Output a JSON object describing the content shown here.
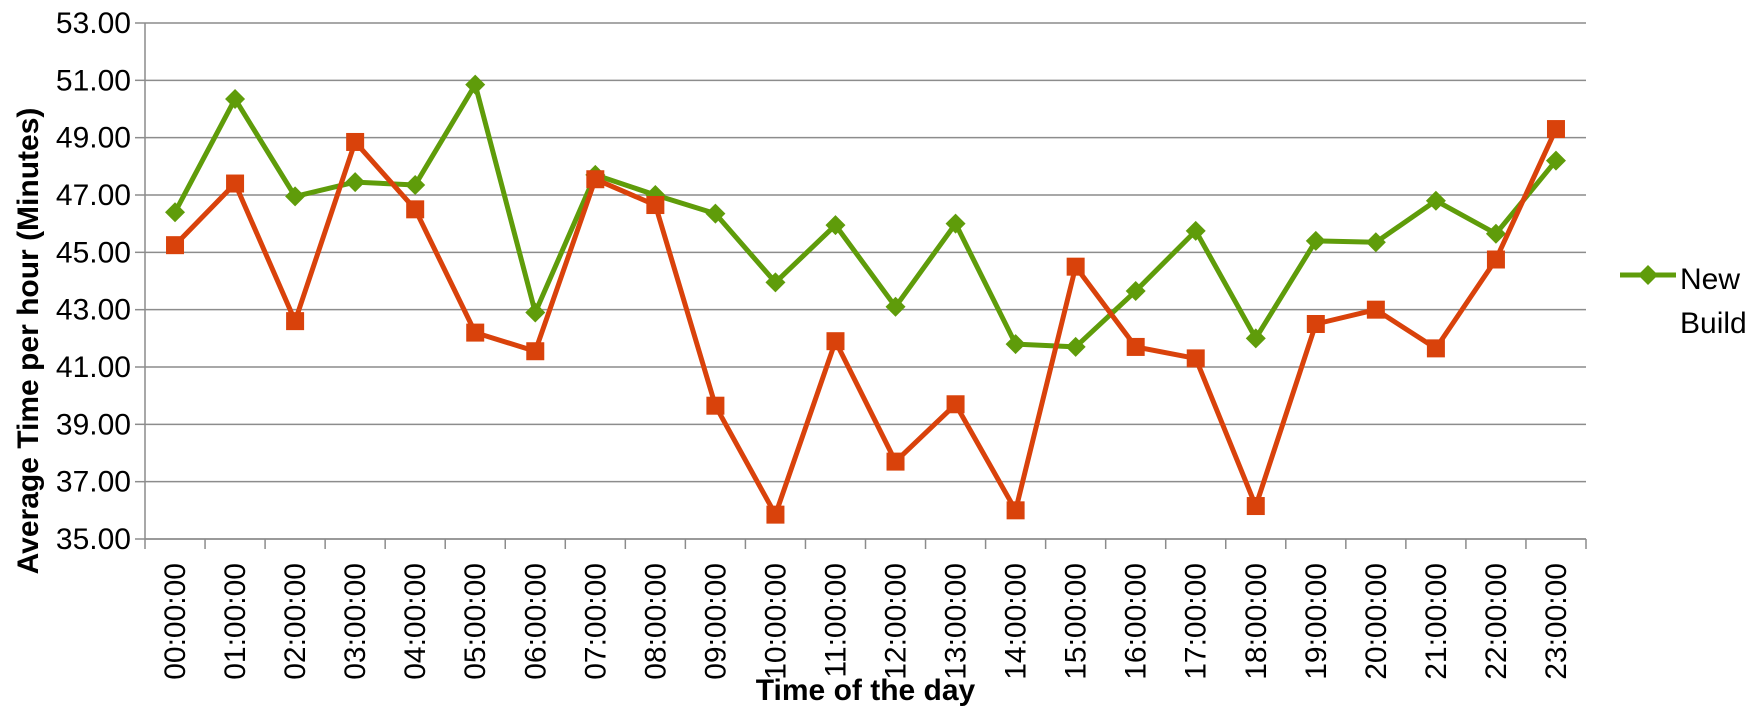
{
  "chart_data": {
    "type": "line",
    "y_label": "Average Time per hour (Minutes)",
    "x_label": "Time of the day",
    "categories": [
      "00:00:00",
      "01:00:00",
      "02:00:00",
      "03:00:00",
      "04:00:00",
      "05:00:00",
      "06:00:00",
      "07:00:00",
      "08:00:00",
      "09:00:00",
      "10:00:00",
      "11:00:00",
      "12:00:00",
      "13:00:00",
      "14:00:00",
      "15:00:00",
      "16:00:00",
      "17:00:00",
      "18:00:00",
      "19:00:00",
      "20:00:00",
      "21:00:00",
      "22:00:00",
      "23:00:00"
    ],
    "series": [
      {
        "name": "New Build",
        "color": "#5f9c0a",
        "marker": "diamond",
        "values": [
          46.4,
          50.35,
          46.95,
          47.45,
          47.35,
          50.85,
          42.9,
          47.7,
          47.0,
          46.35,
          43.95,
          45.95,
          43.1,
          46.0,
          41.8,
          41.7,
          43.65,
          45.75,
          42.0,
          45.4,
          45.35,
          46.8,
          45.65,
          48.2
        ]
      },
      {
        "color": "#d9420b",
        "marker": "square",
        "values": [
          45.25,
          47.4,
          42.6,
          48.85,
          46.5,
          42.2,
          41.55,
          47.55,
          46.65,
          39.65,
          35.85,
          41.9,
          37.7,
          39.7,
          36.0,
          44.5,
          41.7,
          41.3,
          36.15,
          42.5,
          43.0,
          41.65,
          44.75,
          49.3
        ]
      }
    ],
    "ylim": [
      35,
      53
    ],
    "yticks": [
      {
        "value": 35,
        "label": "35.00"
      },
      {
        "value": 37,
        "label": "37.00"
      },
      {
        "value": 39,
        "label": "39.00"
      },
      {
        "value": 41,
        "label": "41.00"
      },
      {
        "value": 43,
        "label": "43.00"
      },
      {
        "value": 45,
        "label": "45.00"
      },
      {
        "value": 47,
        "label": "47.00"
      },
      {
        "value": 49,
        "label": "49.00"
      },
      {
        "value": 51,
        "label": "51.00"
      },
      {
        "value": 53,
        "label": "53.00"
      }
    ],
    "grid": true,
    "legend": "right"
  }
}
